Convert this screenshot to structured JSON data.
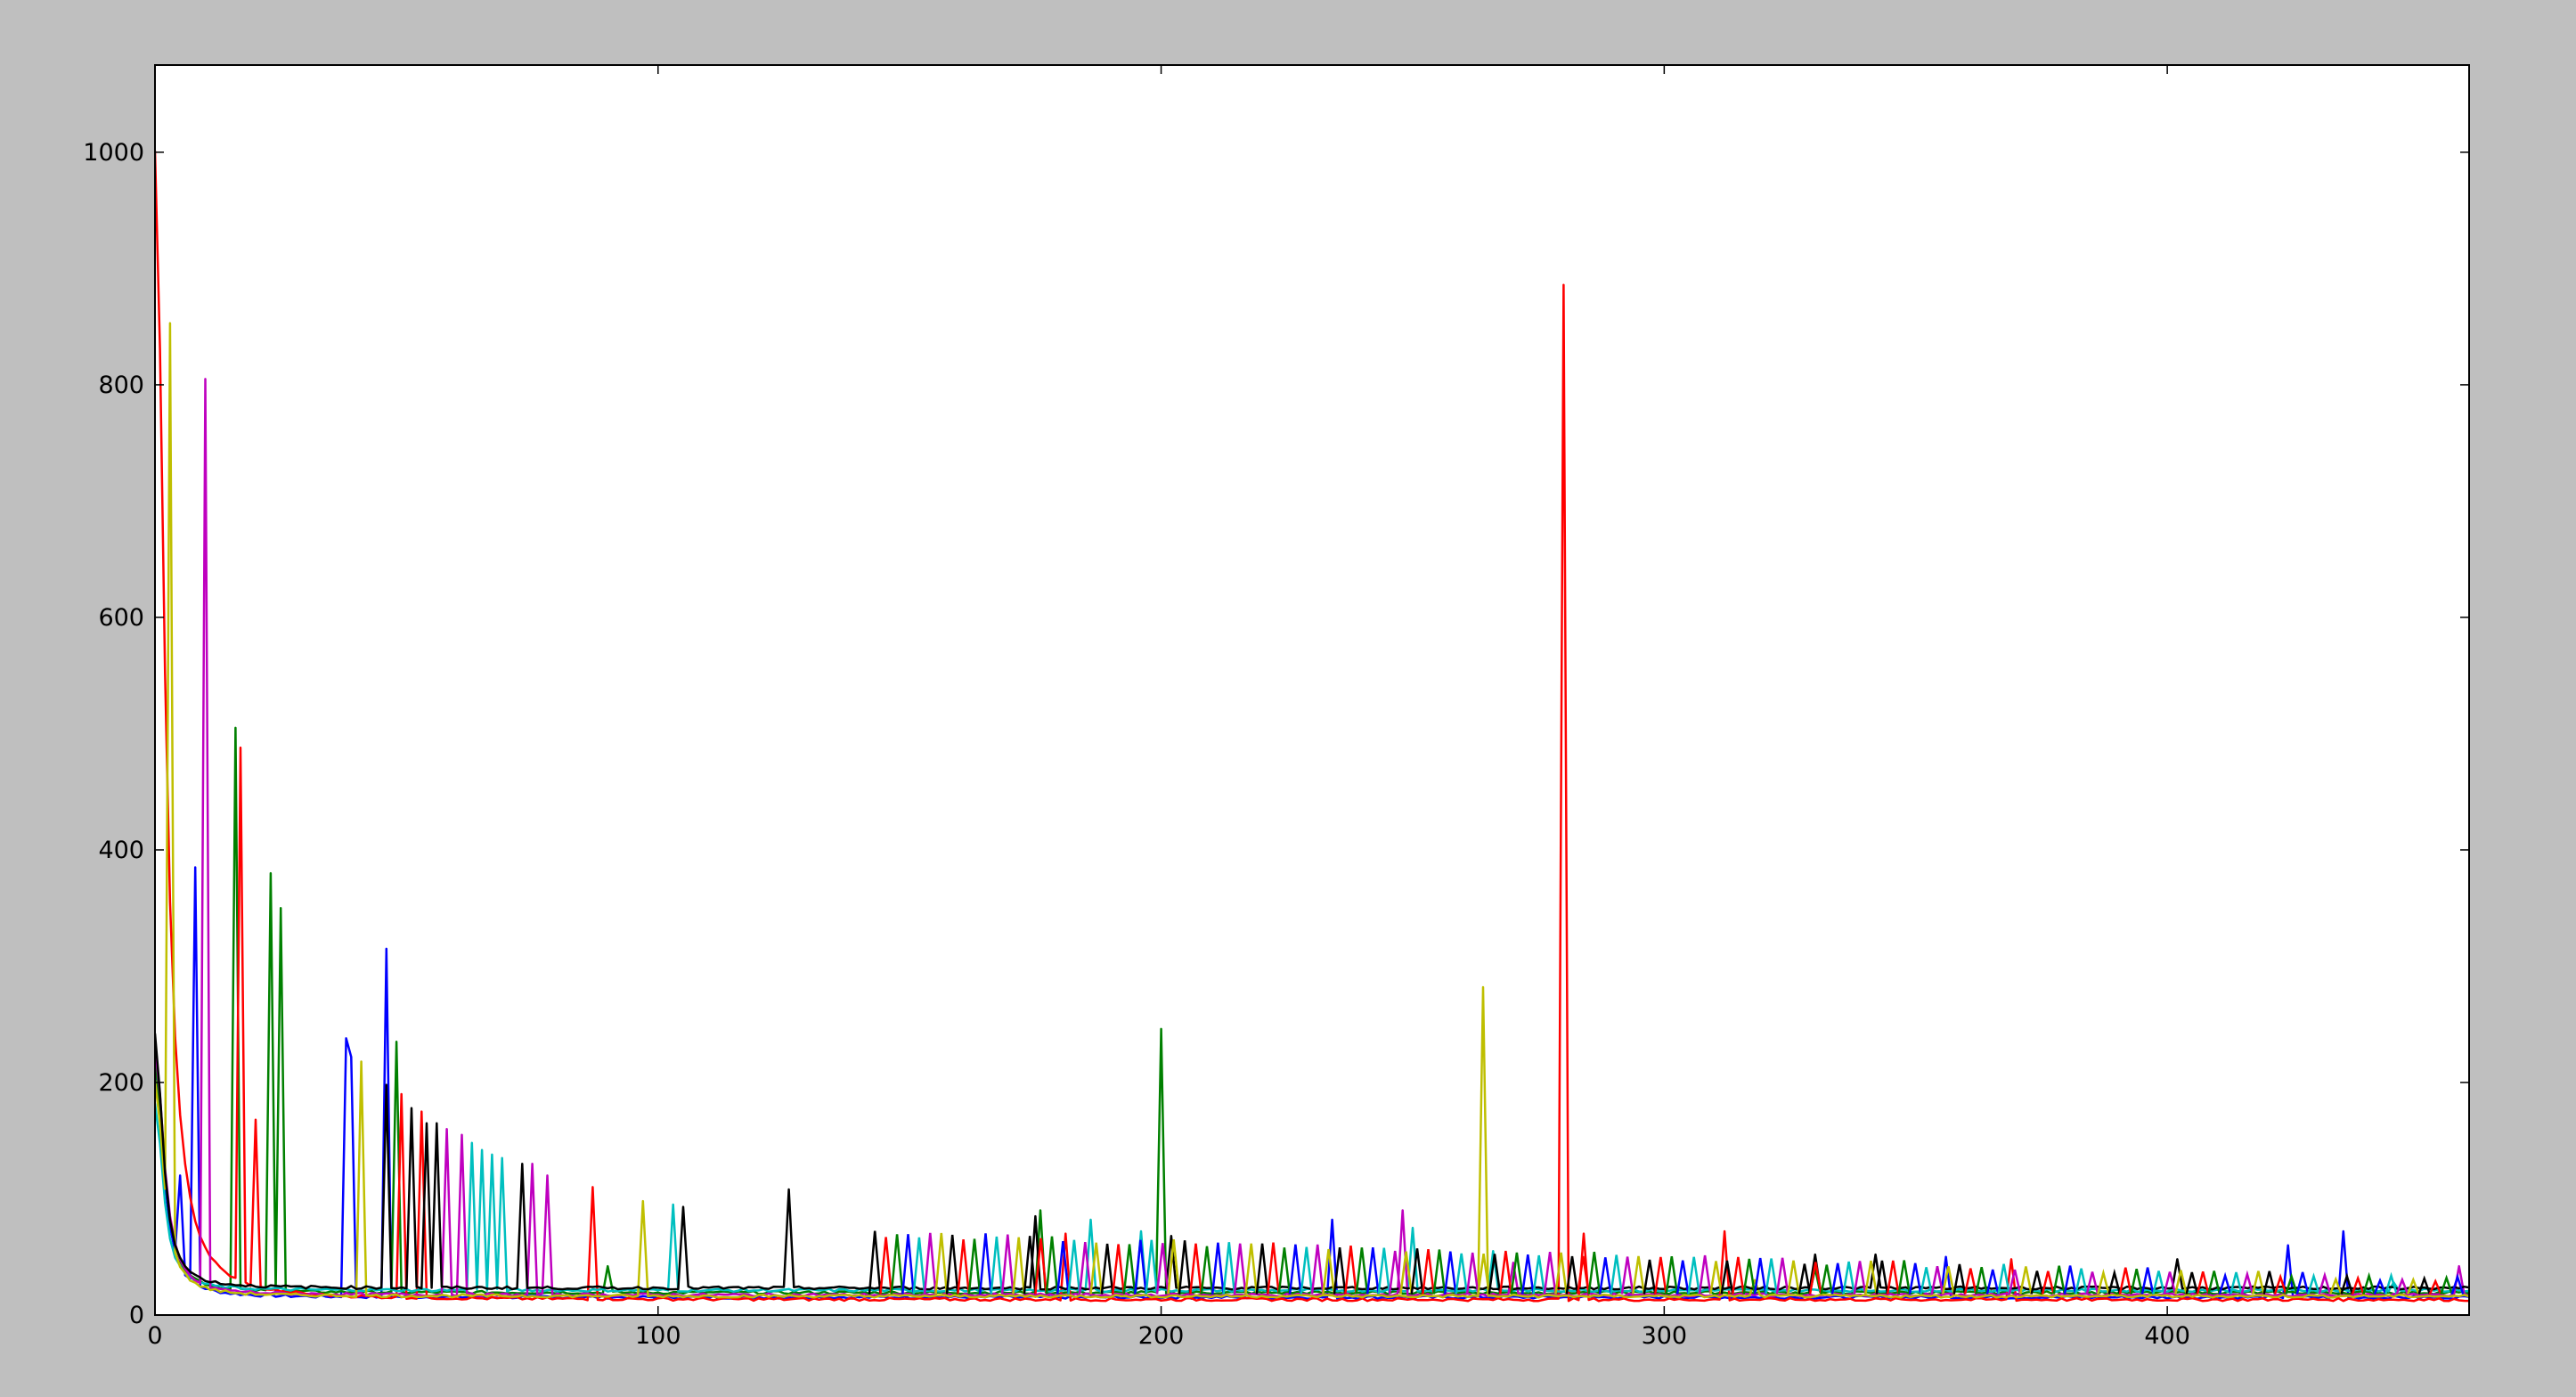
{
  "figure": {
    "background": "#bfbfbf",
    "axes_background": "#ffffff"
  },
  "chart_data": {
    "type": "line",
    "title": "",
    "xlabel": "",
    "ylabel": "",
    "xlim": [
      0,
      460
    ],
    "ylim": [
      0,
      1075
    ],
    "grid": false,
    "legend": "none",
    "x_ticks": [
      0,
      100,
      200,
      300,
      400
    ],
    "y_ticks": [
      0,
      200,
      400,
      600,
      800,
      1000
    ],
    "series": [
      {
        "color": "#0000ff",
        "start": 210,
        "floor": 14,
        "decay": 0.7,
        "peaks": [
          [
            5,
            120
          ],
          [
            8,
            385
          ],
          [
            38,
            238
          ],
          [
            39,
            222
          ],
          [
            46,
            315
          ],
          [
            234,
            82
          ],
          [
            356,
            50
          ],
          [
            424,
            60
          ],
          [
            435,
            72
          ]
        ]
      },
      {
        "color": "#008000",
        "start": 220,
        "floor": 18,
        "decay": 0.7,
        "peaks": [
          [
            16,
            505
          ],
          [
            23,
            380
          ],
          [
            25,
            350
          ],
          [
            48,
            235
          ],
          [
            90,
            42
          ],
          [
            176,
            90
          ],
          [
            200,
            246
          ],
          [
            330,
            40
          ]
        ]
      },
      {
        "color": "#ff0000",
        "start": 1000,
        "floor": 12,
        "decay": 0.6,
        "peaks": [
          [
            17,
            488
          ],
          [
            20,
            168
          ],
          [
            49,
            190
          ],
          [
            53,
            175
          ],
          [
            87,
            110
          ],
          [
            181,
            70
          ],
          [
            280,
            886
          ],
          [
            284,
            70
          ],
          [
            312,
            72
          ],
          [
            369,
            48
          ]
        ]
      },
      {
        "color": "#00bfbf",
        "start": 180,
        "floor": 20,
        "decay": 0.8,
        "peaks": [
          [
            63,
            148
          ],
          [
            65,
            142
          ],
          [
            67,
            138
          ],
          [
            69,
            135
          ],
          [
            103,
            95
          ],
          [
            186,
            82
          ],
          [
            196,
            72
          ],
          [
            250,
            75
          ],
          [
            266,
            55
          ],
          [
            445,
            28
          ]
        ]
      },
      {
        "color": "#bf00bf",
        "start": 230,
        "floor": 16,
        "decay": 0.7,
        "peaks": [
          [
            10,
            805
          ],
          [
            58,
            160
          ],
          [
            61,
            155
          ],
          [
            75,
            130
          ],
          [
            78,
            120
          ],
          [
            248,
            90
          ],
          [
            270,
            45
          ],
          [
            458,
            42
          ]
        ]
      },
      {
        "color": "#bfbf00",
        "start": 200,
        "floor": 15,
        "decay": 0.7,
        "peaks": [
          [
            3,
            853
          ],
          [
            41,
            218
          ],
          [
            97,
            98
          ],
          [
            264,
            282
          ],
          [
            318,
            30
          ]
        ]
      },
      {
        "color": "#000000",
        "start": 240,
        "floor": 22,
        "decay": 0.85,
        "peaks": [
          [
            46,
            198
          ],
          [
            51,
            178
          ],
          [
            54,
            165
          ],
          [
            56,
            165
          ],
          [
            73,
            130
          ],
          [
            105,
            93
          ],
          [
            126,
            108
          ],
          [
            175,
            85
          ],
          [
            202,
            68
          ],
          [
            330,
            52
          ],
          [
            342,
            52
          ],
          [
            402,
            48
          ]
        ]
      }
    ],
    "dense_band": {
      "x_start": 142,
      "x_end": 458,
      "top_start": 70,
      "top_end": 30,
      "base": 18,
      "step": 2.2,
      "colors": [
        "#000000",
        "#ff0000",
        "#008000",
        "#0000ff",
        "#00bfbf",
        "#bf00bf",
        "#bfbf00"
      ]
    }
  }
}
